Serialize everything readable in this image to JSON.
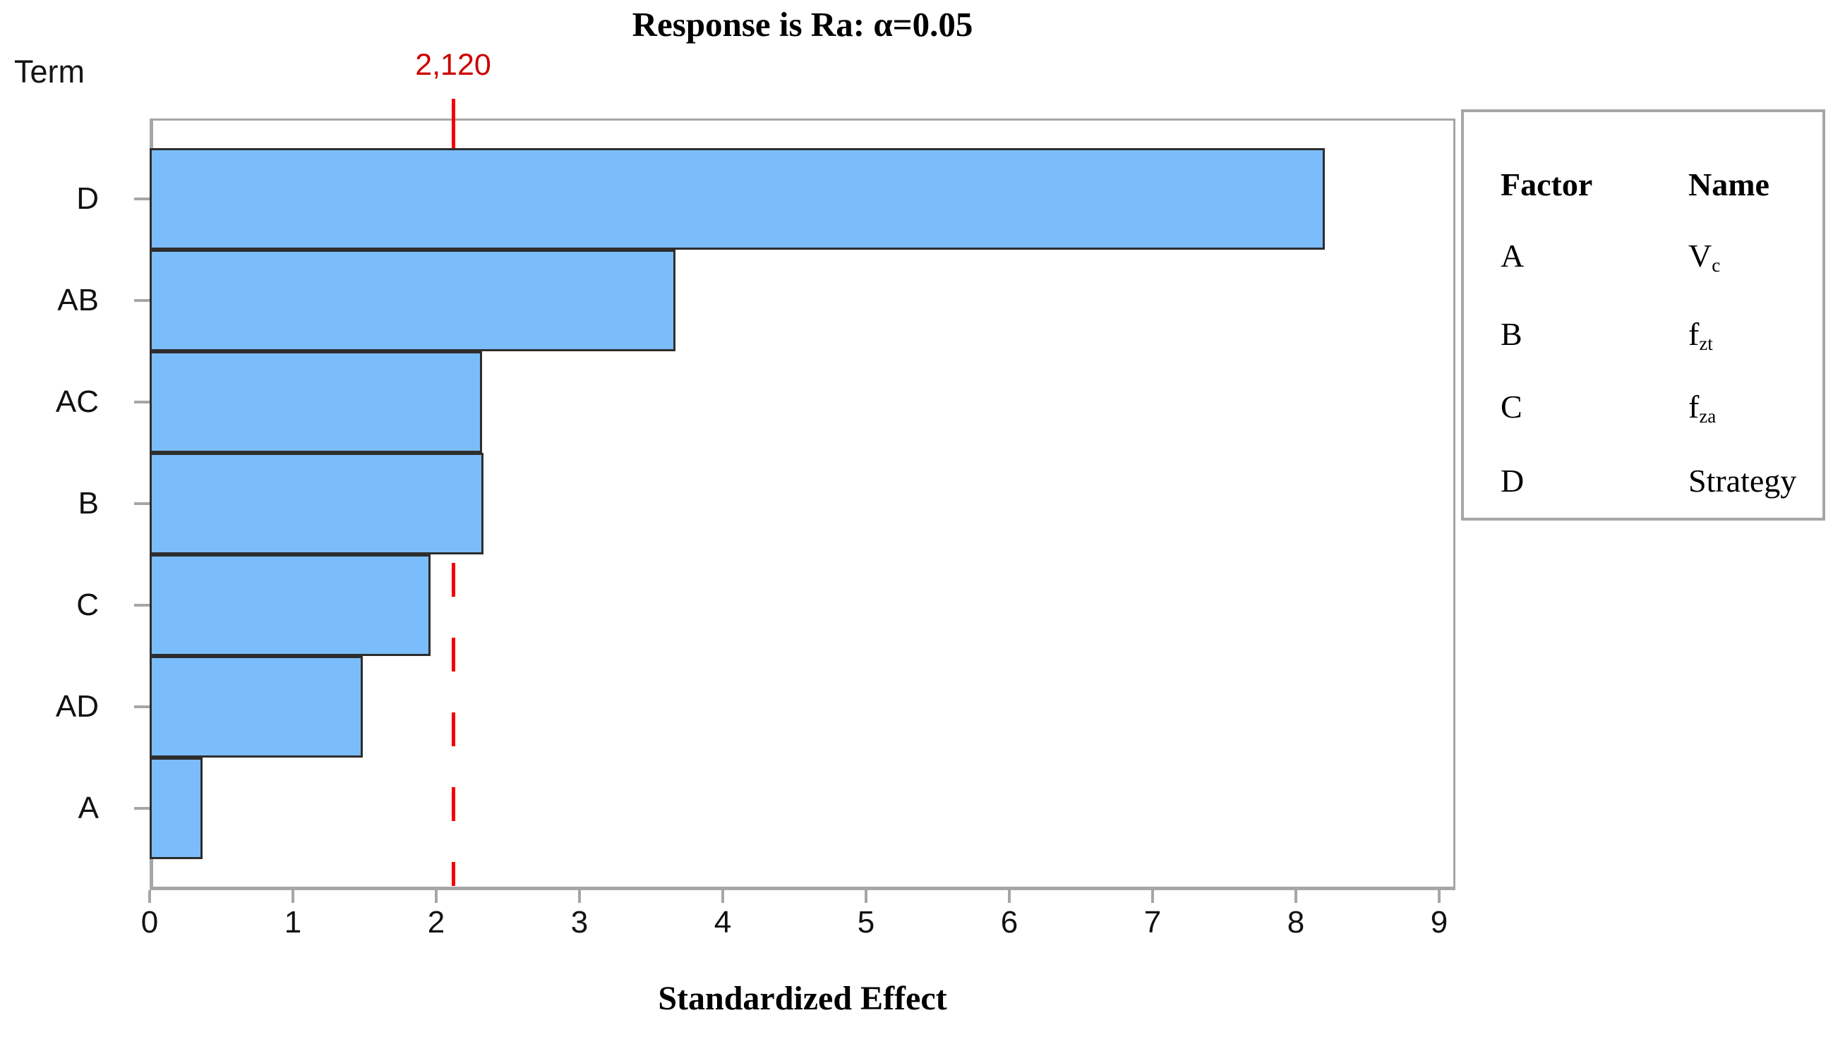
{
  "title": "Response is Ra: α=0.05",
  "y_axis_title": "Term",
  "x_axis_title": "Standardized Effect",
  "reference_line": {
    "value": 2.12,
    "label": "2,120",
    "line_color": "#f40000",
    "label_color": "#cc0000"
  },
  "chart_data": {
    "type": "bar",
    "orientation": "horizontal",
    "title": "Response is Ra: α=0.05",
    "xlabel": "Standardized Effect",
    "ylabel": "Term",
    "categories": [
      "D",
      "AB",
      "AC",
      "B",
      "C",
      "AD",
      "A"
    ],
    "values": [
      8.2,
      3.67,
      2.32,
      2.33,
      1.96,
      1.49,
      0.37
    ],
    "xlim": [
      0,
      9
    ],
    "x_ticks": [
      "0",
      "1",
      "2",
      "3",
      "4",
      "5",
      "6",
      "7",
      "8",
      "9"
    ],
    "reference_line": 2.12,
    "reference_label": "2,120",
    "grid": false,
    "bar_color": "#7bbdfa",
    "bar_border_color": "#2d2d2d",
    "frame_color": "#a6a6a6",
    "legend_position": "right"
  },
  "legend": {
    "headers": [
      "Factor",
      "Name"
    ],
    "rows": [
      {
        "factor": "A",
        "base": "V",
        "sub": "c"
      },
      {
        "factor": "B",
        "base": "f",
        "sub": "zt"
      },
      {
        "factor": "C",
        "base": "f",
        "sub": "za"
      },
      {
        "factor": "D",
        "base": "Strategy",
        "sub": ""
      }
    ]
  }
}
